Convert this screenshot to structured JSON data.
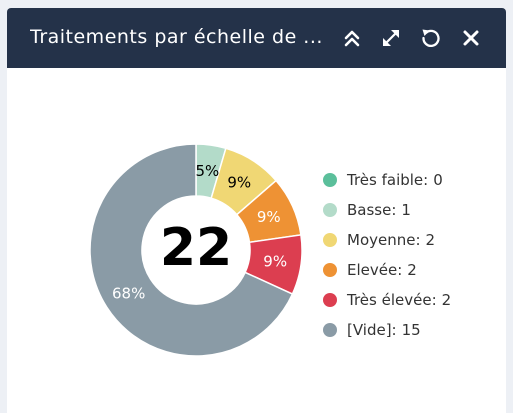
{
  "header": {
    "title": "Traitements par échelle de ...",
    "icons": [
      "collapse-icon",
      "expand-icon",
      "refresh-icon",
      "close-icon"
    ]
  },
  "chart_data": {
    "type": "pie",
    "style": "donut",
    "total": "22",
    "categories": [
      "Très faible",
      "Basse",
      "Moyenne",
      "Elevée",
      "Très élevée",
      "[Vide]"
    ],
    "values": [
      0,
      1,
      2,
      2,
      2,
      15
    ],
    "value_labels": [
      "",
      "5%",
      "9%",
      "9%",
      "9%",
      "68%"
    ],
    "colors": [
      "#5bbf9b",
      "#b3dbc9",
      "#f0d774",
      "#ee9234",
      "#dc3e50",
      "#8a9ba6"
    ],
    "label_colors": [
      "#000000",
      "#000000",
      "#000000",
      "#ffffff",
      "#ffffff",
      "#ffffff"
    ],
    "legend": [
      {
        "label": "Très faible:",
        "count": "0"
      },
      {
        "label": "Basse:",
        "count": "1"
      },
      {
        "label": "Moyenne:",
        "count": "2"
      },
      {
        "label": "Elevée:",
        "count": "2"
      },
      {
        "label": "Très élevée:",
        "count": "2"
      },
      {
        "label": "[Vide]:",
        "count": "15"
      }
    ],
    "legend_position": "right"
  }
}
